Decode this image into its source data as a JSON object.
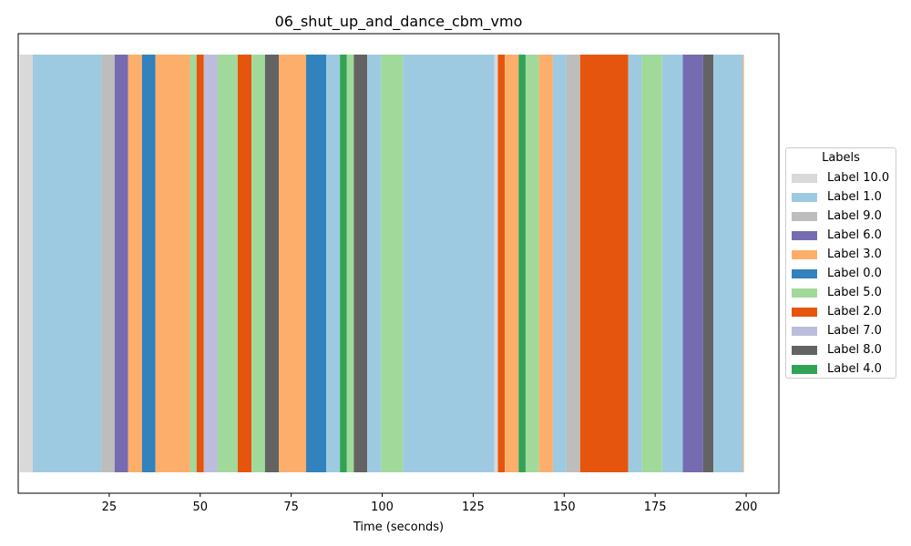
{
  "chart_data": {
    "type": "timeline",
    "title": "06_shut_up_and_dance_cbm_vmo",
    "xlabel": "Time (seconds)",
    "xlim": [
      0,
      209
    ],
    "xticks": [
      25,
      50,
      75,
      100,
      125,
      150,
      175,
      200
    ],
    "legend_title": "Labels",
    "legend_placement": "center-right",
    "grid": false,
    "labels": [
      {
        "name": "Label 10.0",
        "color": "#d9d9d9"
      },
      {
        "name": "Label 1.0",
        "color": "#9ecae1"
      },
      {
        "name": "Label 9.0",
        "color": "#bdbdbd"
      },
      {
        "name": "Label 6.0",
        "color": "#756bb1"
      },
      {
        "name": "Label 3.0",
        "color": "#fdae6b"
      },
      {
        "name": "Label 0.0",
        "color": "#3182bd"
      },
      {
        "name": "Label 5.0",
        "color": "#a1d99b"
      },
      {
        "name": "Label 2.0",
        "color": "#e6550d"
      },
      {
        "name": "Label 7.0",
        "color": "#bcbddc"
      },
      {
        "name": "Label 8.0",
        "color": "#636363"
      },
      {
        "name": "Label 4.0",
        "color": "#31a354"
      }
    ],
    "segments": [
      {
        "start": 0.4,
        "end": 4.0,
        "label": "Label 10.0"
      },
      {
        "start": 4.0,
        "end": 22.8,
        "label": "Label 1.0"
      },
      {
        "start": 22.8,
        "end": 26.5,
        "label": "Label 9.0"
      },
      {
        "start": 26.5,
        "end": 30.2,
        "label": "Label 6.0"
      },
      {
        "start": 30.2,
        "end": 34.0,
        "label": "Label 3.0"
      },
      {
        "start": 34.0,
        "end": 37.7,
        "label": "Label 0.0"
      },
      {
        "start": 37.7,
        "end": 47.2,
        "label": "Label 3.0"
      },
      {
        "start": 47.2,
        "end": 49.0,
        "label": "Label 5.0"
      },
      {
        "start": 49.0,
        "end": 51.0,
        "label": "Label 2.0"
      },
      {
        "start": 51.0,
        "end": 54.8,
        "label": "Label 7.0"
      },
      {
        "start": 54.8,
        "end": 60.3,
        "label": "Label 5.0"
      },
      {
        "start": 60.3,
        "end": 64.1,
        "label": "Label 2.0"
      },
      {
        "start": 64.1,
        "end": 67.8,
        "label": "Label 5.0"
      },
      {
        "start": 67.8,
        "end": 71.6,
        "label": "Label 8.0"
      },
      {
        "start": 71.6,
        "end": 79.1,
        "label": "Label 3.0"
      },
      {
        "start": 79.1,
        "end": 84.6,
        "label": "Label 0.0"
      },
      {
        "start": 84.6,
        "end": 88.4,
        "label": "Label 1.0"
      },
      {
        "start": 88.4,
        "end": 90.3,
        "label": "Label 4.0"
      },
      {
        "start": 90.3,
        "end": 92.2,
        "label": "Label 5.0"
      },
      {
        "start": 92.2,
        "end": 95.9,
        "label": "Label 8.0"
      },
      {
        "start": 95.9,
        "end": 99.7,
        "label": "Label 1.0"
      },
      {
        "start": 99.7,
        "end": 105.7,
        "label": "Label 5.0"
      },
      {
        "start": 105.7,
        "end": 130.8,
        "label": "Label 1.0"
      },
      {
        "start": 130.8,
        "end": 131.8,
        "label": "Label 10.0"
      },
      {
        "start": 131.8,
        "end": 133.7,
        "label": "Label 2.0"
      },
      {
        "start": 133.7,
        "end": 137.5,
        "label": "Label 3.0"
      },
      {
        "start": 137.5,
        "end": 139.4,
        "label": "Label 4.0"
      },
      {
        "start": 139.4,
        "end": 143.1,
        "label": "Label 5.0"
      },
      {
        "start": 143.1,
        "end": 146.9,
        "label": "Label 3.0"
      },
      {
        "start": 146.9,
        "end": 150.6,
        "label": "Label 1.0"
      },
      {
        "start": 150.6,
        "end": 154.4,
        "label": "Label 9.0"
      },
      {
        "start": 154.4,
        "end": 167.6,
        "label": "Label 2.0"
      },
      {
        "start": 167.6,
        "end": 171.3,
        "label": "Label 1.0"
      },
      {
        "start": 171.3,
        "end": 176.9,
        "label": "Label 5.0"
      },
      {
        "start": 176.9,
        "end": 182.6,
        "label": "Label 1.0"
      },
      {
        "start": 182.6,
        "end": 188.2,
        "label": "Label 6.0"
      },
      {
        "start": 188.2,
        "end": 191.0,
        "label": "Label 8.0"
      },
      {
        "start": 191.0,
        "end": 199.1,
        "label": "Label 1.0"
      },
      {
        "start": 199.1,
        "end": 199.4,
        "label": "Label 3.0"
      }
    ]
  }
}
